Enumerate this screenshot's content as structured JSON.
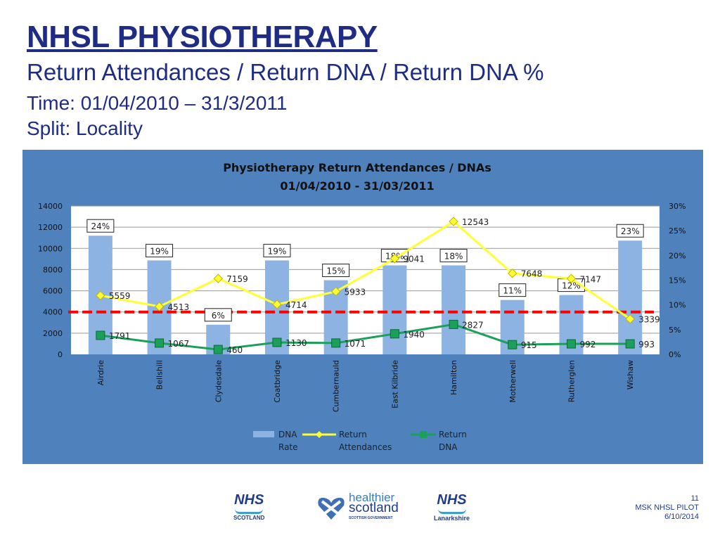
{
  "slide": {
    "title": "NHSL PHYSIOTHERAPY",
    "subtitle": "Return Attendances / Return DNA / Return DNA %",
    "time": "Time: 01/04/2010 – 31/3/2011",
    "split": "Split: Locality"
  },
  "footer": {
    "page_number": "11",
    "project": "MSK NHSL PILOT",
    "date": "6/10/2014"
  },
  "logos": {
    "nhs_scotland": {
      "mark": "NHS",
      "sub": "SCOTLAND"
    },
    "healthier_scotland": {
      "line1": "healthier",
      "line2": "scotland",
      "sub": "SCOTTISH GOVERNMENT"
    },
    "nhs_lanarkshire": {
      "mark": "NHS",
      "sub": "Lanarkshire"
    }
  },
  "chart_data": {
    "type": "bar",
    "title_line1": "Physiotherapy Return Attendances / DNAs",
    "title_line2": "01/04/2010 - 31/03/2011",
    "categories": [
      "Airdrie",
      "Bellshill",
      "Clydesdale",
      "Coatbridge",
      "Cumbernauld",
      "East Kilbride",
      "Hamilton",
      "Motherwell",
      "Rutherglen",
      "Wishaw"
    ],
    "series": [
      {
        "name": "DNA Rate",
        "type": "bar",
        "axis": "right",
        "values": [
          24,
          19,
          6,
          19,
          15,
          18,
          18,
          11,
          12,
          23
        ],
        "labels": [
          "24%",
          "19%",
          "6%",
          "19%",
          "15%",
          "18%",
          "18%",
          "11%",
          "12%",
          "23%"
        ],
        "color": "#8db3e2"
      },
      {
        "name": "Return Attendances",
        "type": "line",
        "axis": "left",
        "values": [
          5559,
          4513,
          7159,
          4714,
          5933,
          9041,
          12543,
          7648,
          7147,
          3339
        ],
        "color": "#ffff33",
        "marker": "diamond"
      },
      {
        "name": "Return DNA",
        "type": "line",
        "axis": "left",
        "values": [
          1791,
          1067,
          460,
          1130,
          1071,
          1940,
          2827,
          915,
          992,
          993
        ],
        "color": "#1aa05a",
        "marker": "square"
      }
    ],
    "reference_line": {
      "value": 4000,
      "axis": "left",
      "color": "#ff0000",
      "style": "dashed"
    },
    "ylim_left": [
      0,
      14000
    ],
    "yticks_left": [
      "0",
      "2000",
      "4000",
      "6000",
      "8000",
      "10000",
      "12000",
      "14000"
    ],
    "ylim_right": [
      0,
      30
    ],
    "yticks_right": [
      "0%",
      "5%",
      "10%",
      "15%",
      "20%",
      "25%",
      "30%"
    ],
    "grid": true,
    "legend_position": "bottom",
    "legend": [
      {
        "line1": "DNA",
        "line2": "Rate"
      },
      {
        "line1": "Return",
        "line2": "Attendances"
      },
      {
        "line1": "Return",
        "line2": "DNA"
      }
    ],
    "background": "#4f81bd"
  }
}
